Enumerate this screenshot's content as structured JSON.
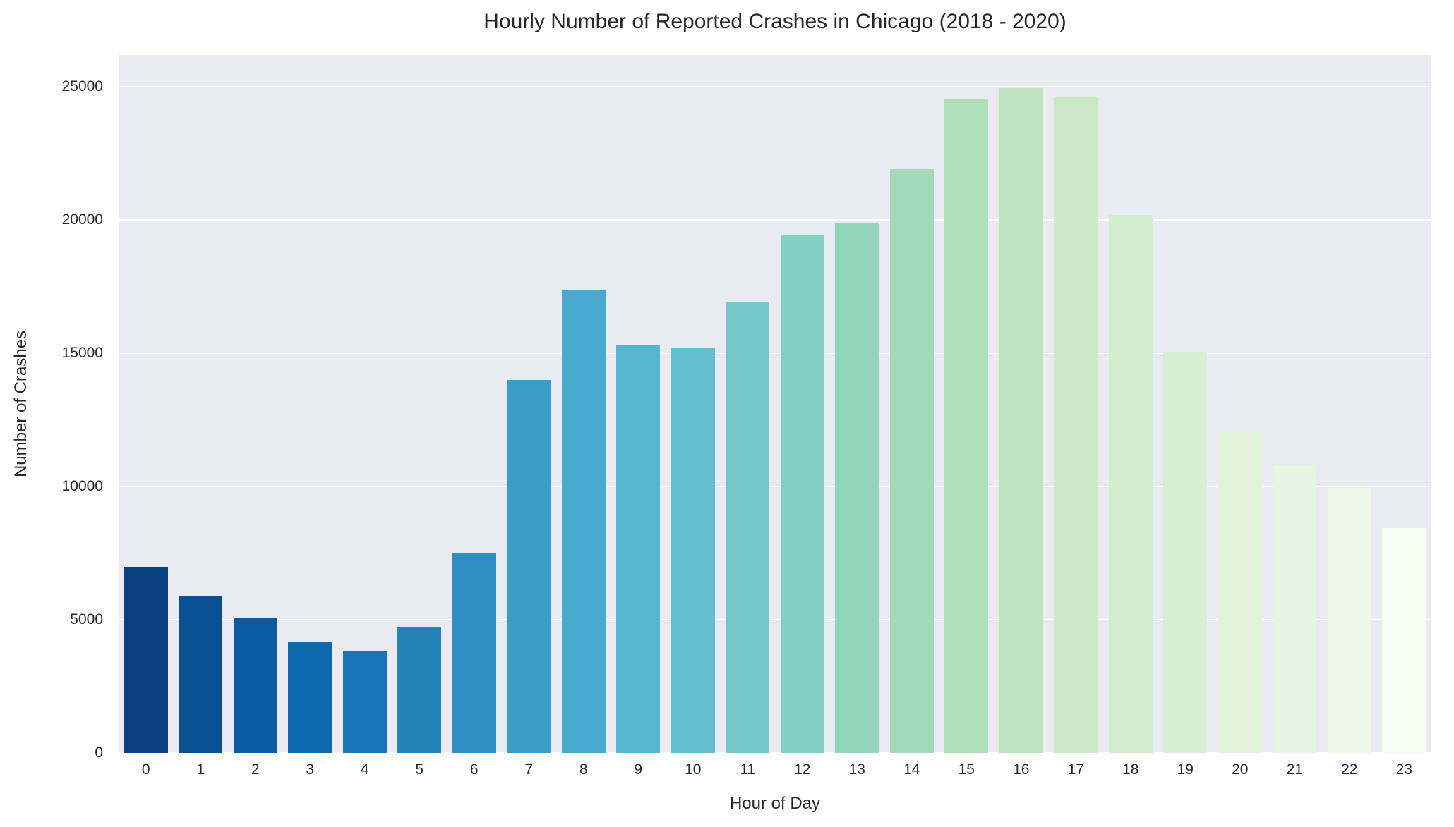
{
  "chart_data": {
    "type": "bar",
    "title": "Hourly Number of Reported Crashes in Chicago (2018 - 2020)",
    "xlabel": "Hour of Day",
    "ylabel": "Number of Crashes",
    "categories": [
      "0",
      "1",
      "2",
      "3",
      "4",
      "5",
      "6",
      "7",
      "8",
      "9",
      "10",
      "11",
      "12",
      "13",
      "14",
      "15",
      "16",
      "17",
      "18",
      "19",
      "20",
      "21",
      "22",
      "23"
    ],
    "values": [
      7000,
      5900,
      5050,
      4170,
      3850,
      4700,
      7500,
      14000,
      17400,
      15300,
      15200,
      16900,
      19450,
      19900,
      21900,
      24550,
      24950,
      24600,
      20200,
      15050,
      12100,
      10800,
      9950,
      8450
    ],
    "bar_colors": [
      "#084081",
      "#084e90",
      "#085c9f",
      "#0a6aad",
      "#1676b3",
      "#2283b9",
      "#2e8fc0",
      "#3a9dc7",
      "#46abce",
      "#54b6d1",
      "#64bfcc",
      "#73c8c7",
      "#83cfc1",
      "#92d5bc",
      "#a2dbb7",
      "#b0e0b8",
      "#bce5be",
      "#c9eac4",
      "#d1edcb",
      "#d8f0d2",
      "#dff3da",
      "#e7f6e1",
      "#eff9e9",
      "#f7fcf0"
    ],
    "yticks": [
      0,
      5000,
      10000,
      15000,
      20000,
      25000
    ],
    "ylim": [
      0,
      26200
    ],
    "grid": true,
    "legend": "none",
    "plot_background": "#eaeaf2",
    "grid_color": "#ffffff",
    "palette": "GnBu_r"
  }
}
